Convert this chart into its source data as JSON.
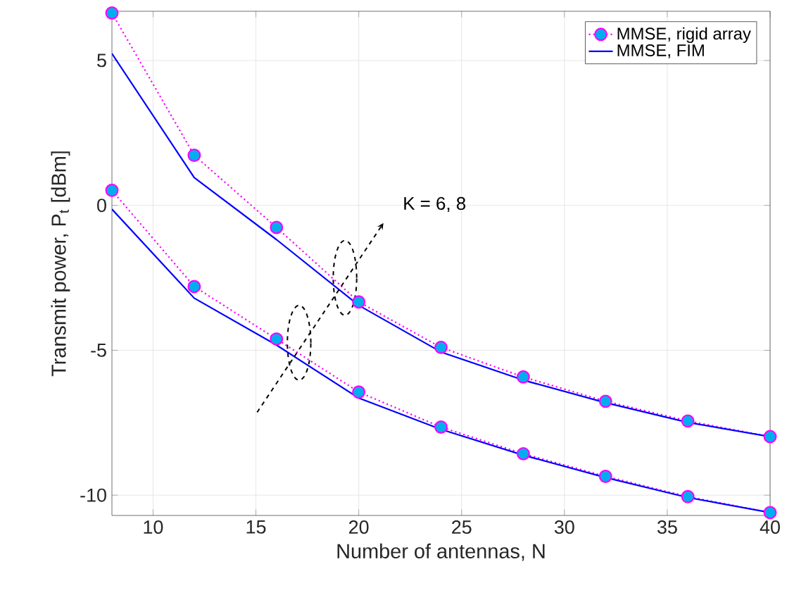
{
  "chart_data": {
    "type": "line",
    "xlabel": "Number of antennas, N",
    "ylabel": "Transmit power, P$_{t}$ [dBm]",
    "x": [
      8,
      12,
      16,
      20,
      24,
      28,
      32,
      36,
      40
    ],
    "series": [
      {
        "name": "MMSE, rigid array",
        "color": "#ff00ff",
        "marker": "circle",
        "line_style": "dotted",
        "values": [
          6.64,
          1.73,
          -0.76,
          -3.33,
          -4.9,
          -5.92,
          -6.76,
          -7.44,
          -7.98
        ]
      },
      {
        "name": "MMSE, FIM",
        "color": "#0000ff",
        "marker": "none",
        "line_style": "solid",
        "values": [
          5.24,
          0.96,
          -1.18,
          -3.45,
          -5.06,
          -6.03,
          -6.81,
          -7.49,
          -7.98
        ]
      },
      {
        "color": "#ff00ff",
        "marker": "circle",
        "line_style": "dotted",
        "values": [
          0.52,
          -2.8,
          -4.61,
          -6.44,
          -7.65,
          -8.57,
          -9.35,
          -10.05,
          -10.6
        ]
      },
      {
        "color": "#0000ff",
        "marker": "none",
        "line_style": "solid",
        "values": [
          -0.13,
          -3.2,
          -4.82,
          -6.65,
          -7.73,
          -8.62,
          -9.39,
          -10.08,
          -10.6
        ]
      }
    ],
    "xlim": [
      8,
      40
    ],
    "ylim": [
      -10.7,
      6.7
    ],
    "xticks": [
      10,
      15,
      20,
      25,
      30,
      35,
      40
    ],
    "yticks": [
      -10,
      -5,
      0,
      5
    ],
    "grid": true,
    "legend": "top right",
    "annotations": [
      "K = 6, 8"
    ]
  }
}
